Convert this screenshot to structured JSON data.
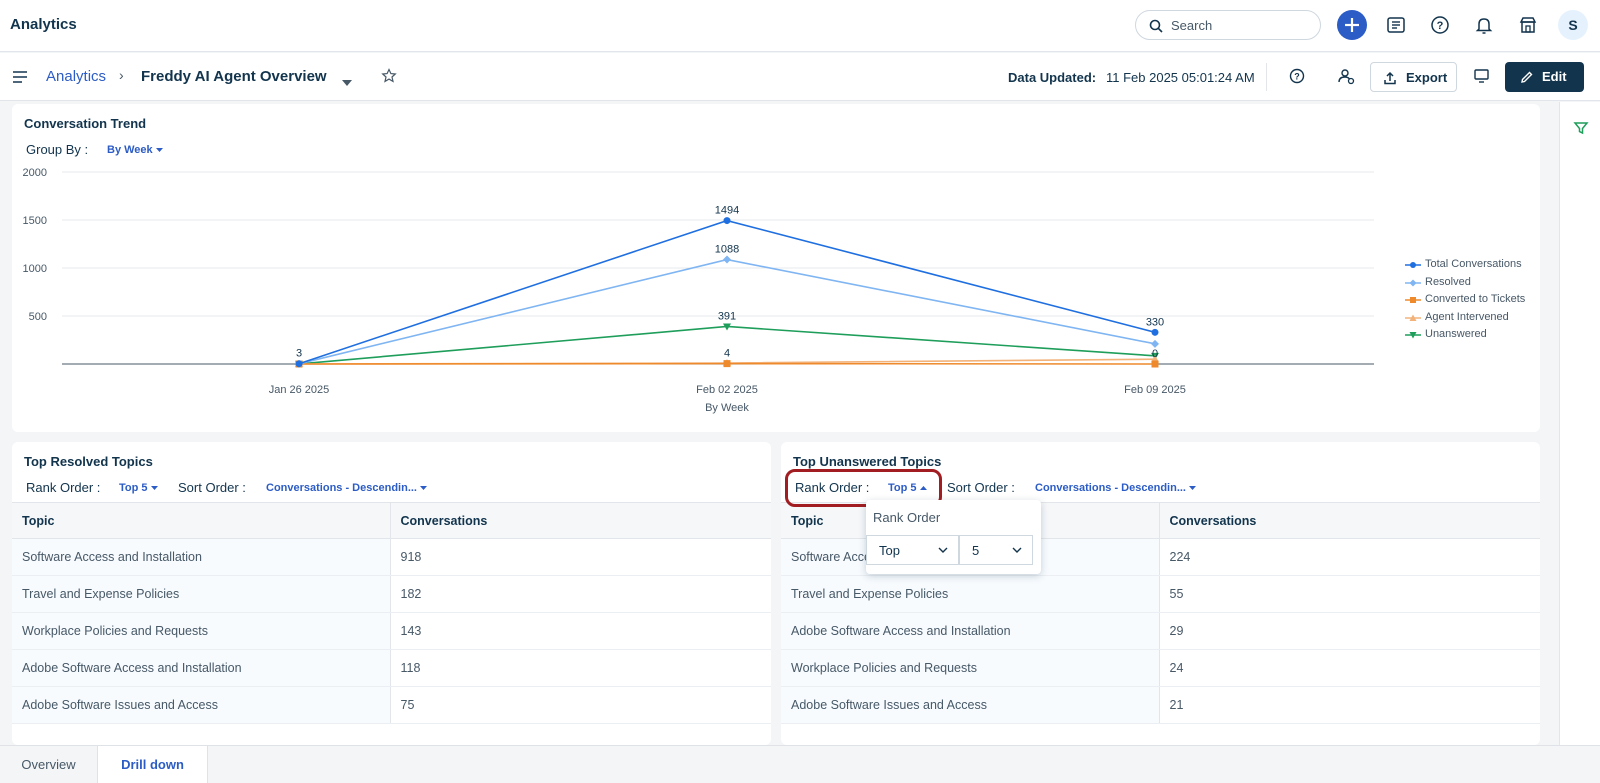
{
  "app": {
    "title": "Analytics"
  },
  "header": {
    "search_placeholder": "Search",
    "avatar_initial": "S"
  },
  "subheader": {
    "breadcrumb_link": "Analytics",
    "breadcrumb_sep": "›",
    "page_title": "Freddy AI Agent Overview",
    "data_updated_label": "Data Updated:",
    "data_updated_value": "11 Feb 2025 05:01:24 AM",
    "export_label": "Export",
    "edit_label": "Edit"
  },
  "trend": {
    "title": "Conversation Trend",
    "group_by_label": "Group By :",
    "group_by_value": "By Week"
  },
  "chart_data": {
    "type": "line",
    "title": "Conversation Trend",
    "xlabel": "By Week",
    "ylabel": "",
    "x": [
      "Jan 26 2025",
      "Feb 02 2025",
      "Feb 09 2025"
    ],
    "ylim": [
      0,
      2000
    ],
    "yticks": [
      500,
      1000,
      1500,
      2000
    ],
    "series": [
      {
        "name": "Total Conversations",
        "values": [
          3,
          1494,
          330
        ],
        "color": "#1f6fe0",
        "marker": "circle",
        "labels": [
          "3",
          "1494",
          "330"
        ]
      },
      {
        "name": "Resolved",
        "values": [
          2,
          1088,
          210
        ],
        "color": "#7fb5f2",
        "marker": "diamond",
        "labels": [
          "",
          "1088",
          ""
        ]
      },
      {
        "name": "Converted to Tickets",
        "values": [
          0,
          4,
          0
        ],
        "color": "#ee8a2c",
        "marker": "square",
        "labels": [
          "",
          "4",
          "0"
        ]
      },
      {
        "name": "Agent Intervened",
        "values": [
          0,
          10,
          50
        ],
        "color": "#f2b27a",
        "marker": "triangle-up",
        "labels": [
          "",
          "",
          ""
        ]
      },
      {
        "name": "Unanswered",
        "values": [
          1,
          391,
          85
        ],
        "color": "#1e9e5a",
        "marker": "triangle-down",
        "labels": [
          "",
          "391",
          ""
        ]
      }
    ],
    "legend_position": "right"
  },
  "resolved": {
    "title": "Top Resolved Topics",
    "rank_label": "Rank Order :",
    "rank_value": "Top 5",
    "sort_label": "Sort Order :",
    "sort_value": "Conversations - Descendin...",
    "columns": [
      "Topic",
      "Conversations"
    ],
    "rows": [
      {
        "topic": "Software Access and Installation",
        "count": "918"
      },
      {
        "topic": "Travel and Expense Policies",
        "count": "182"
      },
      {
        "topic": "Workplace Policies and Requests",
        "count": "143"
      },
      {
        "topic": "Adobe Software Access and Installation",
        "count": "118"
      },
      {
        "topic": "Adobe Software Issues and Access",
        "count": "75"
      }
    ]
  },
  "unanswered": {
    "title": "Top Unanswered Topics",
    "rank_label": "Rank Order :",
    "rank_value": "Top 5",
    "sort_label": "Sort Order :",
    "sort_value": "Conversations - Descendin...",
    "columns": [
      "Topic",
      "Conversations"
    ],
    "rows": [
      {
        "topic": "Software Access and Installation",
        "count": "224"
      },
      {
        "topic": "Travel and Expense Policies",
        "count": "55"
      },
      {
        "topic": "Adobe Software Access and Installation",
        "count": "29"
      },
      {
        "topic": "Workplace Policies and Requests",
        "count": "24"
      },
      {
        "topic": "Adobe Software Issues and Access",
        "count": "21"
      }
    ]
  },
  "rank_popup": {
    "title": "Rank Order",
    "direction_value": "Top",
    "count_value": "5"
  },
  "tabs": {
    "overview": "Overview",
    "drill_down": "Drill down"
  }
}
